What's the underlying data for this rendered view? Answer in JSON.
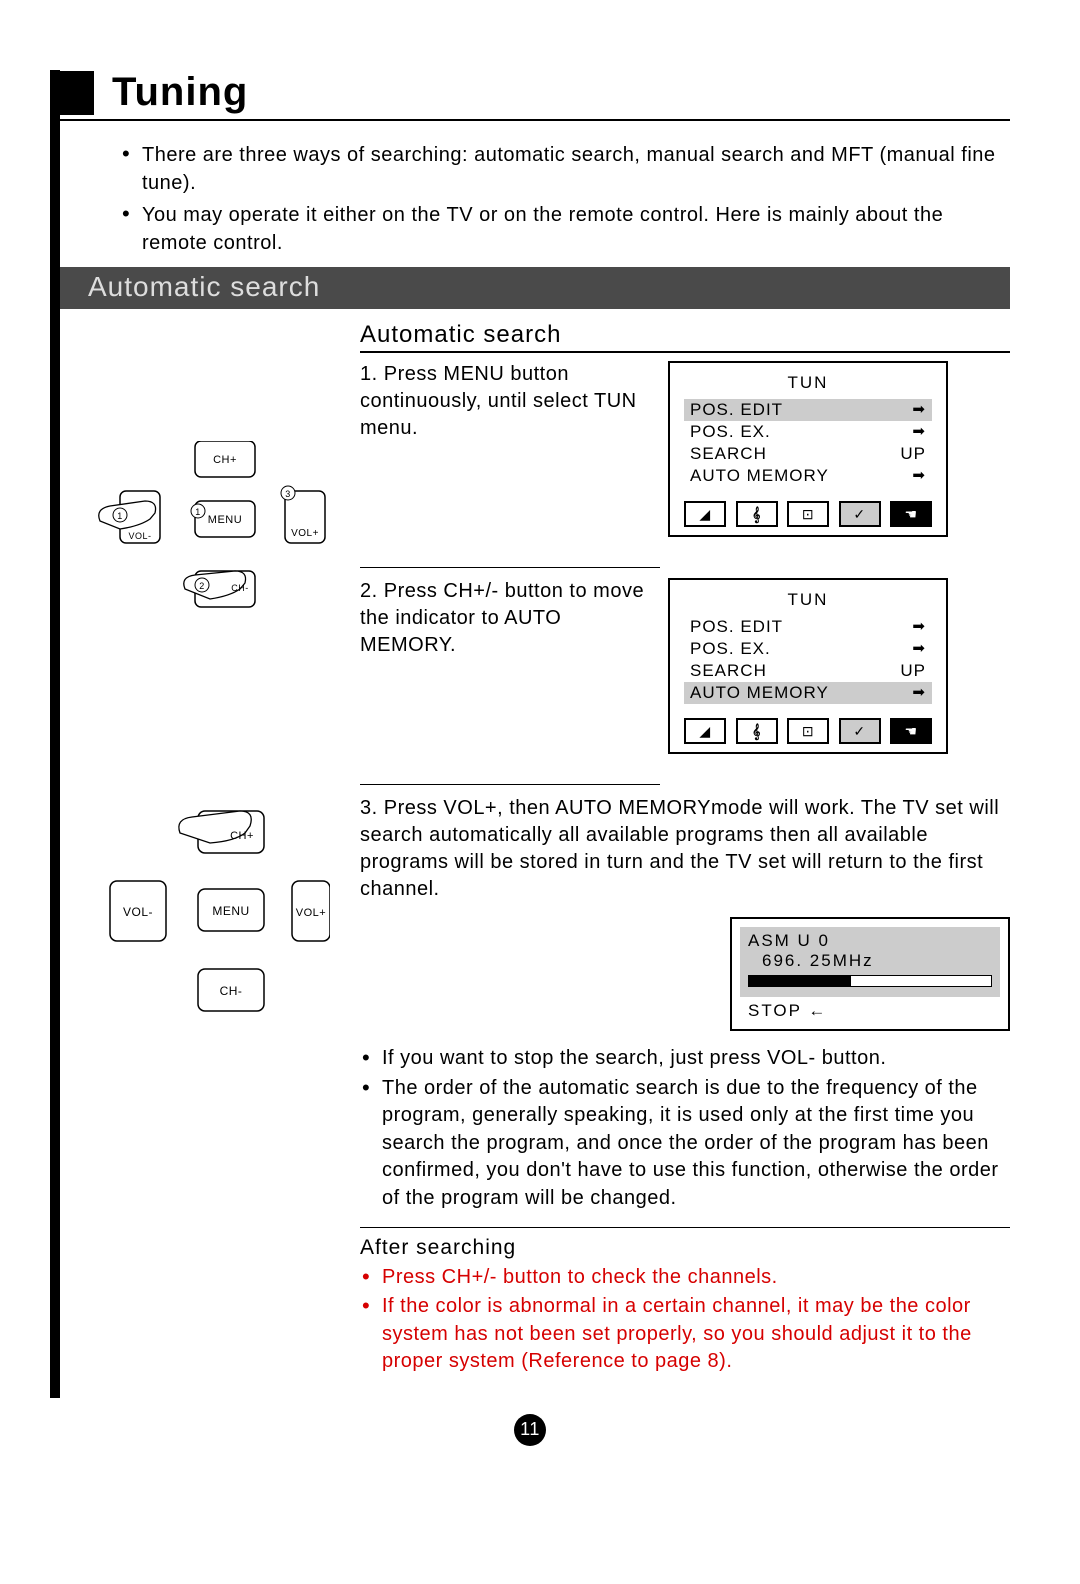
{
  "page": {
    "title": "Tuning",
    "number": "11"
  },
  "intro": {
    "b1": "There are three ways of searching: automatic search, manual search and MFT (manual fine tune).",
    "b2": "You may operate it either on the TV or on the remote control. Here is mainly about the remote control."
  },
  "section_bar": "Automatic search",
  "subhead": "Automatic search",
  "steps": {
    "s1": "1. Press MENU button continuously, until select TUN menu.",
    "s2": "2. Press CH+/- button to move the indicator to AUTO MEMORY.",
    "s3": "3. Press VOL+, then AUTO MEMORYmode will work. The TV set will search automatically all available programs then all available programs will be stored in turn and the TV set will return to the first channel."
  },
  "tun_menu": {
    "title": "TUN",
    "rows": [
      {
        "label": "POS. EDIT",
        "val": "➡"
      },
      {
        "label": "POS. EX.",
        "val": "➡"
      },
      {
        "label": "SEARCH",
        "val": "UP"
      },
      {
        "label": "AUTO MEMORY",
        "val": "➡"
      }
    ],
    "highlight_index_step1": 0,
    "highlight_index_step2": 3
  },
  "asm": {
    "line1": "ASM      U  0",
    "freq": "696. 25MHz",
    "progress_pct": 42,
    "stop": "STOP ←"
  },
  "notes": {
    "n1": "If you want to stop the search, just press VOL- button.",
    "n2": "The order of the automatic search is due to the frequency of the program, generally speaking, it is used only at the first time you search the program, and once the order of the program has been confirmed, you don't have to use this function, otherwise the order of the program will be changed."
  },
  "after": {
    "title": "After searching",
    "a1": "Press CH+/- button to check the channels.",
    "a2": "If the color is abnormal in a certain channel, it may be the color system has not been set properly, so you should adjust it to the proper system (Reference to page 8)."
  },
  "remote": {
    "ch_plus": "CH+",
    "ch_minus": "CH-",
    "vol_plus": "VOL+",
    "vol_minus": "VOL-",
    "menu": "MENU",
    "n1": "1",
    "n2": "2",
    "n3": "3"
  },
  "colors": {
    "bar_bg": "#4a4a4a",
    "bar_fg": "#dddddd",
    "highlight": "#cccccc",
    "red": "#d60000"
  }
}
